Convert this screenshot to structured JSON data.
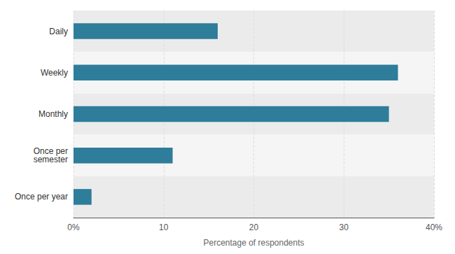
{
  "chart_data": {
    "type": "bar",
    "orientation": "horizontal",
    "categories": [
      "Daily",
      "Weekly",
      "Monthly",
      "Once per\nsemester",
      "Once per year"
    ],
    "values": [
      16,
      36,
      35,
      11,
      2
    ],
    "color": "#2e7d9a",
    "xlabel": "Percentage of respondents",
    "xlim": [
      0,
      40
    ],
    "xticks": [
      {
        "value": 0,
        "label": "0%"
      },
      10,
      20,
      30,
      {
        "value": 40,
        "label": "40%"
      }
    ],
    "grid": true
  }
}
